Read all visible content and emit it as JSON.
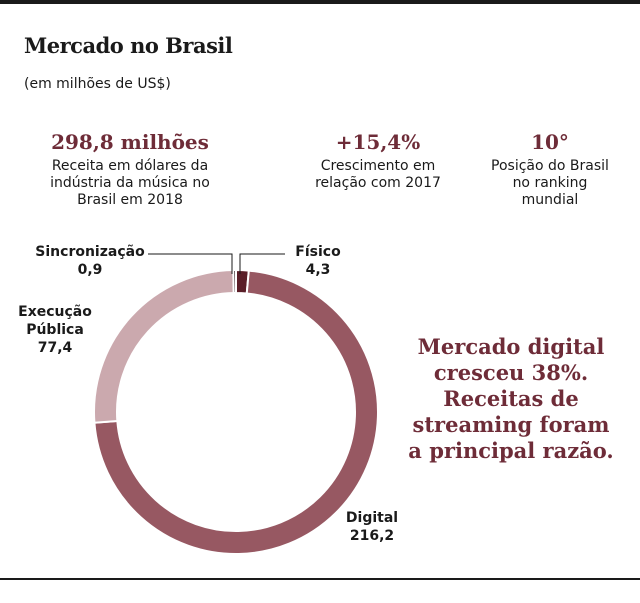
{
  "header": {
    "title": "Mercado no Brasil",
    "subtitle": "(em milhões de US$)"
  },
  "stats": [
    {
      "value": "298,8 milhões",
      "desc_lines": [
        "Receita em dólares da",
        "indústria da música no",
        "Brasil em 2018"
      ]
    },
    {
      "value": "+15,4%",
      "desc_lines": [
        "Crescimento em",
        "relação com 2017"
      ]
    },
    {
      "value": "10°",
      "desc_lines": [
        "Posição do Brasil",
        "no ranking",
        "mundial"
      ]
    }
  ],
  "note": {
    "lines": [
      "Mercado digital",
      "cresceu 38%.",
      "Receitas de",
      "streaming foram",
      "a principal razão."
    ]
  },
  "chart_data": {
    "type": "pie",
    "donut": true,
    "colors": {
      "Físico": "#5a1e28",
      "Digital": "#975862",
      "Execução Pública": "#cba9ae",
      "Sincronização": "#2d1a1e"
    },
    "slices": [
      {
        "label_lines": [
          "Físico"
        ],
        "value": 4.3,
        "value_text": "4,3"
      },
      {
        "label_lines": [
          "Digital"
        ],
        "value": 216.2,
        "value_text": "216,2"
      },
      {
        "label_lines": [
          "Execução",
          "Pública"
        ],
        "value": 77.4,
        "value_text": "77,4"
      },
      {
        "label_lines": [
          "Sincronização"
        ],
        "value": 0.9,
        "value_text": "0,9"
      }
    ]
  }
}
